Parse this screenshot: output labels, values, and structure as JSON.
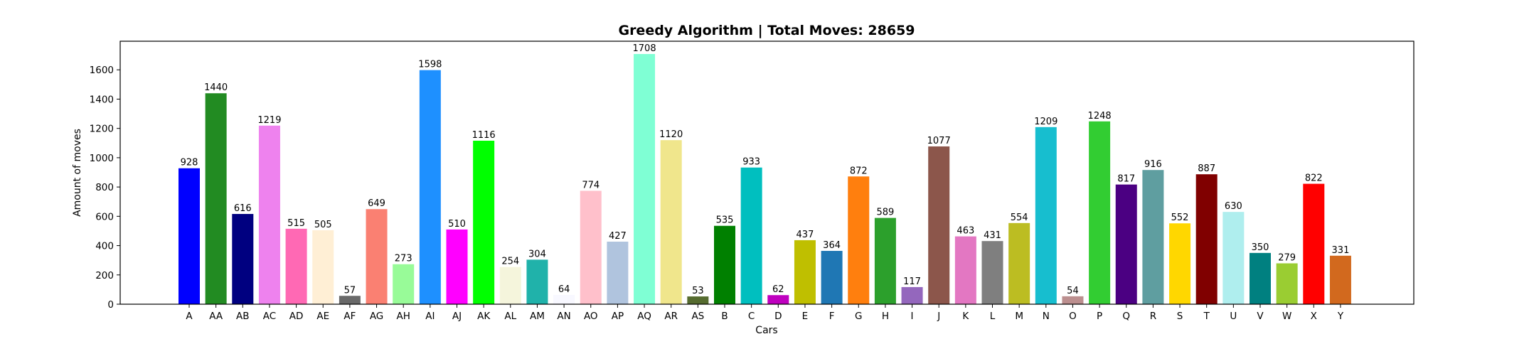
{
  "chart_data": {
    "type": "bar",
    "title": "Greedy Algorithm | Total Moves: 28659",
    "xlabel": "Cars",
    "ylabel": "Amount of moves",
    "ylim": [
      0,
      1790
    ],
    "yticks": [
      0,
      200,
      400,
      600,
      800,
      1000,
      1200,
      1400,
      1600
    ],
    "grid": false,
    "categories": [
      "A",
      "AA",
      "AB",
      "AC",
      "AD",
      "AE",
      "AF",
      "AG",
      "AH",
      "AI",
      "AJ",
      "AK",
      "AL",
      "AM",
      "AN",
      "AO",
      "AP",
      "AQ",
      "AR",
      "AS",
      "B",
      "C",
      "D",
      "E",
      "F",
      "G",
      "H",
      "I",
      "J",
      "K",
      "L",
      "M",
      "N",
      "O",
      "P",
      "Q",
      "R",
      "S",
      "T",
      "U",
      "V",
      "W",
      "X",
      "Y"
    ],
    "values": [
      928,
      1440,
      616,
      1219,
      515,
      505,
      57,
      649,
      273,
      1598,
      510,
      1116,
      254,
      304,
      64,
      774,
      427,
      1708,
      1120,
      53,
      535,
      933,
      62,
      437,
      364,
      872,
      589,
      117,
      1077,
      463,
      431,
      554,
      1209,
      54,
      1248,
      817,
      916,
      552,
      887,
      630,
      350,
      279,
      822,
      331
    ],
    "colors": [
      "#0000ff",
      "#228b22",
      "#000080",
      "#ee82ee",
      "#ff69b4",
      "#ffefd5",
      "#696969",
      "#fa8072",
      "#98fb98",
      "#1e90ff",
      "#ff00ff",
      "#00ff00",
      "#f5f5dc",
      "#20b2aa",
      "#f8f8ff",
      "#ffc0cb",
      "#b0c4de",
      "#7fffd4",
      "#f0e68c",
      "#556b2f",
      "#008000",
      "#00bfbf",
      "#bf00bf",
      "#bfbf00",
      "#1f77b4",
      "#ff7f0e",
      "#2ca02c",
      "#9467bd",
      "#8c564b",
      "#e377c2",
      "#7f7f7f",
      "#bcbd22",
      "#17becf",
      "#bc8f8f",
      "#32cd32",
      "#4b0082",
      "#5f9ea0",
      "#ffd700",
      "#800000",
      "#afeeee",
      "#008080",
      "#9acd32",
      "#ff0000",
      "#d2691e"
    ]
  }
}
